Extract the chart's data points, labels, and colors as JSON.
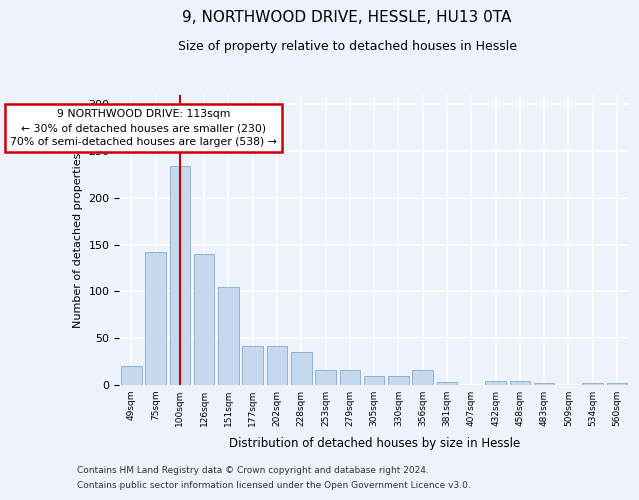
{
  "title_line1": "9, NORTHWOOD DRIVE, HESSLE, HU13 0TA",
  "title_line2": "Size of property relative to detached houses in Hessle",
  "xlabel": "Distribution of detached houses by size in Hessle",
  "ylabel": "Number of detached properties",
  "categories": [
    "49sqm",
    "75sqm",
    "100sqm",
    "126sqm",
    "151sqm",
    "177sqm",
    "202sqm",
    "228sqm",
    "253sqm",
    "279sqm",
    "305sqm",
    "330sqm",
    "356sqm",
    "381sqm",
    "407sqm",
    "432sqm",
    "458sqm",
    "483sqm",
    "509sqm",
    "534sqm",
    "560sqm"
  ],
  "values": [
    20,
    142,
    234,
    140,
    105,
    42,
    42,
    35,
    16,
    16,
    10,
    10,
    16,
    3,
    0,
    4,
    4,
    2,
    0,
    2,
    2
  ],
  "bar_color": "#c5d8ee",
  "bar_edge_color": "#8ab4d8",
  "bg_color": "#eef2fb",
  "grid_color": "#ffffff",
  "annotation_box_text": "9 NORTHWOOD DRIVE: 113sqm\n← 30% of detached houses are smaller (230)\n70% of semi-detached houses are larger (538) →",
  "annotation_box_color": "#ffffff",
  "annotation_box_edge_color": "#cc0000",
  "red_line_x": 2.0,
  "ylim": [
    0,
    310
  ],
  "footnote_line1": "Contains HM Land Registry data © Crown copyright and database right 2024.",
  "footnote_line2": "Contains public sector information licensed under the Open Government Licence v3.0."
}
